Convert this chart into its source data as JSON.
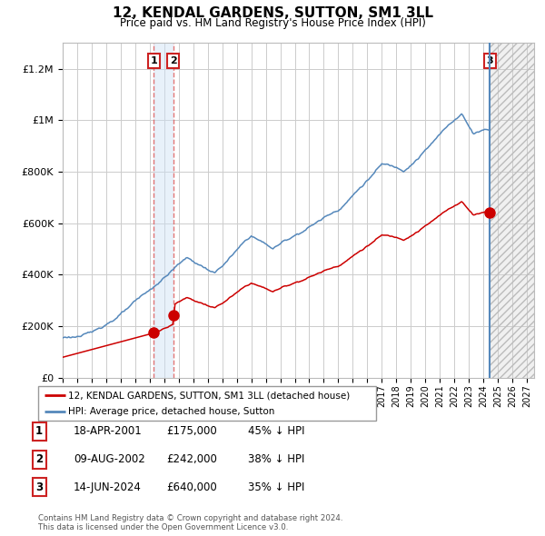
{
  "title": "12, KENDAL GARDENS, SUTTON, SM1 3LL",
  "subtitle": "Price paid vs. HM Land Registry's House Price Index (HPI)",
  "ylim": [
    0,
    1300000
  ],
  "yticks": [
    0,
    200000,
    400000,
    600000,
    800000,
    1000000,
    1200000
  ],
  "ytick_labels": [
    "£0",
    "£200K",
    "£400K",
    "£600K",
    "£800K",
    "£1M",
    "£1.2M"
  ],
  "legend_entries": [
    "12, KENDAL GARDENS, SUTTON, SM1 3LL (detached house)",
    "HPI: Average price, detached house, Sutton"
  ],
  "legend_colors": [
    "#cc0000",
    "#5588bb"
  ],
  "purchases": [
    {
      "label": "1",
      "date": "18-APR-2001",
      "x_year": 2001.29,
      "price": 175000,
      "pct": "45% ↓ HPI"
    },
    {
      "label": "2",
      "date": "09-AUG-2002",
      "x_year": 2002.61,
      "price": 242000,
      "pct": "38% ↓ HPI"
    },
    {
      "label": "3",
      "date": "14-JUN-2024",
      "x_year": 2024.45,
      "price": 640000,
      "pct": "35% ↓ HPI"
    }
  ],
  "shade_start": 2024.45,
  "shade_end": 2027.5,
  "hpi_color": "#5588bb",
  "price_color": "#cc0000",
  "background_color": "#ffffff",
  "grid_color": "#cccccc",
  "footnote": "Contains HM Land Registry data © Crown copyright and database right 2024.\nThis data is licensed under the Open Government Licence v3.0.",
  "xlim_start": 1995,
  "xlim_end": 2027.5
}
